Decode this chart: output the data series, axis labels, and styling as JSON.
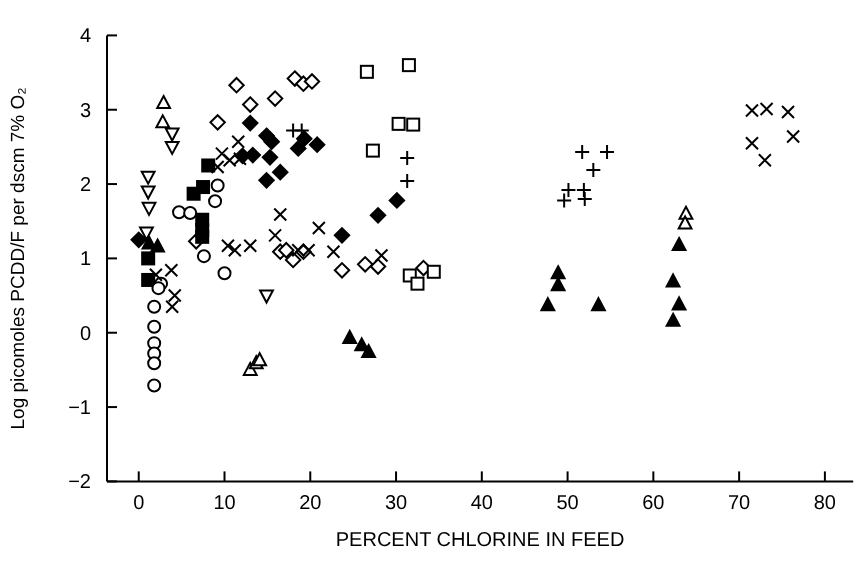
{
  "chart_data": {
    "type": "scatter",
    "xlabel": "PERCENT CHLORINE IN FEED",
    "ylabel": "Log picomoles PCDD/F per dscm  7% O₂",
    "xlim": [
      -3.7,
      83.3
    ],
    "ylim": [
      -2,
      4
    ],
    "xticks": [
      0,
      10,
      20,
      30,
      40,
      50,
      60,
      70,
      80
    ],
    "yticks": [
      -2,
      -1,
      0,
      1,
      2,
      3,
      4
    ],
    "grid": false,
    "series": [
      {
        "marker": "diamond",
        "color": "#ffffff",
        "x": [
          11.4,
          13.0,
          15.9,
          9.2,
          18.2,
          19.2,
          20.2,
          6.7,
          16.5,
          18.0,
          19.2,
          23.7,
          26.4,
          27.9,
          33.2,
          17.2
        ],
        "values": [
          3.33,
          3.07,
          3.15,
          2.83,
          3.42,
          3.35,
          3.38,
          1.23,
          1.09,
          0.98,
          1.09,
          0.84,
          0.92,
          0.89,
          0.87,
          1.11
        ]
      },
      {
        "marker": "diamond",
        "color": "#000000",
        "x": [
          13.0,
          13.3,
          12.1,
          14.9,
          15.5,
          15.3,
          14.9,
          16.5,
          18.6,
          19.3,
          20.8,
          23.7,
          27.9,
          30.1,
          0
        ],
        "values": [
          2.82,
          2.39,
          2.38,
          2.65,
          2.57,
          2.36,
          2.05,
          2.16,
          2.48,
          2.61,
          2.53,
          1.31,
          1.58,
          1.78,
          1.25
        ]
      },
      {
        "marker": "square",
        "color": "#ffffff",
        "x": [
          26.6,
          31.5,
          30.3,
          32.0,
          27.3,
          31.6,
          32.5,
          34.4
        ],
        "values": [
          3.51,
          3.6,
          2.81,
          2.8,
          2.45,
          0.77,
          0.66,
          0.82
        ]
      },
      {
        "marker": "square",
        "color": "#000000",
        "x": [
          6.4,
          7.5,
          8.1,
          7.4,
          7.4,
          7.4,
          1.1,
          1.1
        ],
        "values": [
          1.87,
          1.96,
          2.25,
          1.52,
          1.29,
          1.38,
          1.0,
          0.71
        ]
      },
      {
        "marker": "circle",
        "color": "#ffffff",
        "x": [
          4.7,
          6.0,
          8.9,
          7.6,
          10.0,
          9.2,
          1.8,
          1.8,
          1.8,
          1.8,
          1.8,
          1.8,
          2.6,
          2.3
        ],
        "values": [
          1.62,
          1.61,
          1.77,
          1.03,
          0.8,
          1.98,
          0.35,
          0.08,
          -0.14,
          -0.28,
          -0.41,
          -0.71,
          0.66,
          0.6
        ]
      },
      {
        "marker": "x",
        "color": "#000000",
        "x": [
          9.2,
          11.6,
          9.7,
          10.6,
          11.8,
          15.9,
          16.5,
          21.0,
          22.7,
          13.0,
          10.4,
          11.2,
          18.6,
          19.8,
          28.3,
          2.0,
          4.2,
          3.9,
          3.8
        ],
        "values": [
          2.23,
          2.57,
          2.41,
          2.32,
          2.34,
          1.31,
          1.59,
          1.41,
          1.09,
          1.17,
          1.17,
          1.11,
          1.11,
          1.11,
          1.04,
          0.78,
          0.5,
          0.35,
          0.84
        ]
      },
      {
        "marker": "cross",
        "color": "#000000",
        "x": [
          31.3,
          31.3,
          51.7,
          54.6,
          53.0,
          49.6,
          50.1,
          51.9,
          52.0,
          18.0,
          19.0
        ],
        "values": [
          2.35,
          2.04,
          2.43,
          2.43,
          2.19,
          1.78,
          1.92,
          1.92,
          1.8,
          2.72,
          2.72
        ]
      },
      {
        "marker": "x",
        "color": "#000000",
        "x": [
          71.5,
          73.2,
          75.7,
          71.5,
          73.0,
          76.3
        ],
        "values": [
          2.99,
          3.01,
          2.97,
          2.55,
          2.32,
          2.64
        ]
      },
      {
        "marker": "triangle",
        "color": "#ffffff",
        "x": [
          2.9,
          2.8,
          13.0,
          13.7,
          14.1,
          63.8,
          63.7
        ],
        "values": [
          3.09,
          2.83,
          -0.5,
          -0.41,
          -0.37,
          1.6,
          1.47
        ]
      },
      {
        "marker": "triangle",
        "color": "#000000",
        "x": [
          1.2,
          2.2,
          24.6,
          26.0,
          26.8,
          47.7,
          48.9,
          48.9,
          53.6,
          62.3,
          63.0,
          62.3,
          63.0
        ],
        "values": [
          1.2,
          1.16,
          -0.07,
          -0.17,
          -0.26,
          0.37,
          0.8,
          0.64,
          0.37,
          0.69,
          0.38,
          0.16,
          1.18
        ]
      },
      {
        "marker": "triangle-down",
        "color": "#ffffff",
        "x": [
          1.1,
          1.1,
          1.2,
          3.9,
          3.9,
          0.9,
          14.9
        ],
        "values": [
          2.1,
          1.9,
          1.68,
          2.5,
          2.68,
          1.35,
          0.5
        ]
      }
    ]
  }
}
